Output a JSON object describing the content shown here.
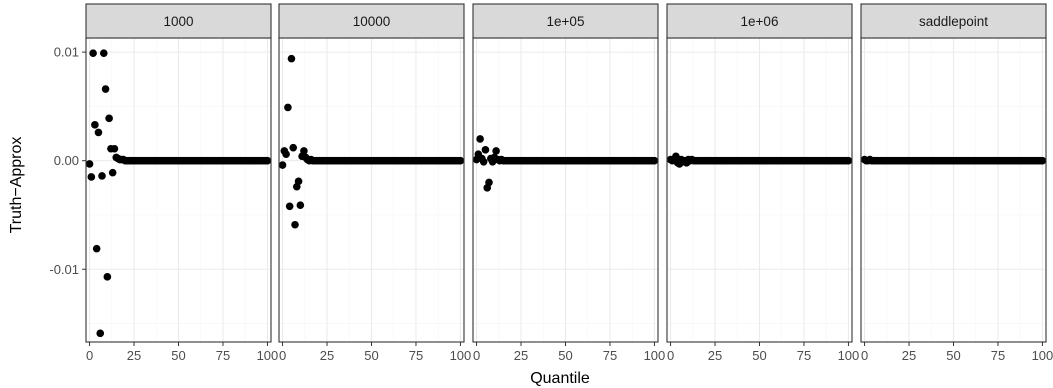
{
  "chart_data": {
    "type": "scatter",
    "facet_layout": "1 row, 5 columns",
    "xlabel": "Quantile",
    "ylabel": "Truth−Approx",
    "xlim": [
      -2,
      102
    ],
    "ylim": [
      -0.0167,
      0.0113
    ],
    "x_ticks": [
      0,
      25,
      50,
      75,
      100
    ],
    "x_tick_labels": [
      "0",
      "25",
      "50",
      "75",
      "100"
    ],
    "y_ticks": [
      -0.01,
      0.0,
      0.01
    ],
    "y_tick_labels": [
      "-0.01",
      "0.00",
      "0.01"
    ],
    "grid": true,
    "theme": "bw",
    "colors": {
      "point": "#000000",
      "strip_fill": "#d9d9d9",
      "grid_major": "#ebebeb",
      "grid_minor": "#f5f5f5",
      "panel_border": "#333333"
    },
    "panels": [
      {
        "label": "1000",
        "points": [
          [
            0,
            -0.0003
          ],
          [
            1,
            -0.0015
          ],
          [
            2,
            0.0099
          ],
          [
            3,
            0.0033
          ],
          [
            4,
            -0.0081
          ],
          [
            5,
            0.0026
          ],
          [
            6,
            -0.0159
          ],
          [
            7,
            -0.0014
          ],
          [
            8,
            0.0099
          ],
          [
            9,
            0.0066
          ],
          [
            10,
            -0.0107
          ],
          [
            11,
            0.0039
          ],
          [
            12,
            0.0011
          ],
          [
            13,
            -0.0011
          ],
          [
            14,
            0.0011
          ],
          [
            15,
            0.0003
          ],
          [
            16,
            0.0002
          ],
          [
            17,
            0.0001
          ],
          [
            18,
            0.0001
          ],
          [
            19,
            0.0001
          ],
          [
            20,
            0.0
          ]
        ],
        "flat_from": 21,
        "flat_to": 100,
        "flat_value": 0.0
      },
      {
        "label": "10000",
        "points": [
          [
            0,
            -0.0004
          ],
          [
            1,
            0.0009
          ],
          [
            2,
            0.0006
          ],
          [
            3,
            0.0049
          ],
          [
            4,
            -0.0042
          ],
          [
            5,
            0.0094
          ],
          [
            6,
            0.0012
          ],
          [
            7,
            -0.0059
          ],
          [
            8,
            -0.0024
          ],
          [
            9,
            -0.0019
          ],
          [
            10,
            -0.0041
          ],
          [
            11,
            0.0004
          ],
          [
            12,
            0.0009
          ],
          [
            13,
            0.0003
          ],
          [
            14,
            0.0001
          ],
          [
            15,
            0.0
          ],
          [
            16,
            0.0001
          ],
          [
            17,
            0.0
          ]
        ],
        "flat_from": 18,
        "flat_to": 100,
        "flat_value": 0.0
      },
      {
        "label": "1e+05",
        "points": [
          [
            0,
            0.0001
          ],
          [
            1,
            0.0006
          ],
          [
            2,
            0.002
          ],
          [
            3,
            0.0002
          ],
          [
            4,
            -0.0001
          ],
          [
            5,
            0.001
          ],
          [
            6,
            -0.0025
          ],
          [
            7,
            -0.002
          ],
          [
            8,
            0.0002
          ],
          [
            9,
            -0.0001
          ],
          [
            10,
            0.0003
          ],
          [
            11,
            0.0009
          ],
          [
            12,
            0.0001
          ],
          [
            13,
            0.0
          ],
          [
            14,
            0.0001
          ],
          [
            15,
            0.0
          ]
        ],
        "flat_from": 16,
        "flat_to": 100,
        "flat_value": 0.0
      },
      {
        "label": "1e+06",
        "points": [
          [
            0,
            0.0001
          ],
          [
            1,
            0.0
          ],
          [
            2,
            0.0001
          ],
          [
            3,
            0.0004
          ],
          [
            4,
            -0.0002
          ],
          [
            5,
            -0.0003
          ],
          [
            6,
            0.0001
          ],
          [
            7,
            -0.0001
          ],
          [
            8,
            0.0
          ],
          [
            9,
            -0.0002
          ],
          [
            10,
            0.0001
          ],
          [
            11,
            0.0
          ],
          [
            12,
            0.0001
          ],
          [
            13,
            0.0
          ]
        ],
        "flat_from": 14,
        "flat_to": 100,
        "flat_value": 0.0
      },
      {
        "label": "saddlepoint",
        "points": [
          [
            0,
            0.0001
          ],
          [
            1,
            0.0
          ],
          [
            2,
            0.0
          ],
          [
            3,
            0.0001
          ],
          [
            4,
            0.0
          ],
          [
            5,
            0.0
          ],
          [
            6,
            0.0
          ]
        ],
        "flat_from": 7,
        "flat_to": 100,
        "flat_value": 0.0
      }
    ]
  }
}
